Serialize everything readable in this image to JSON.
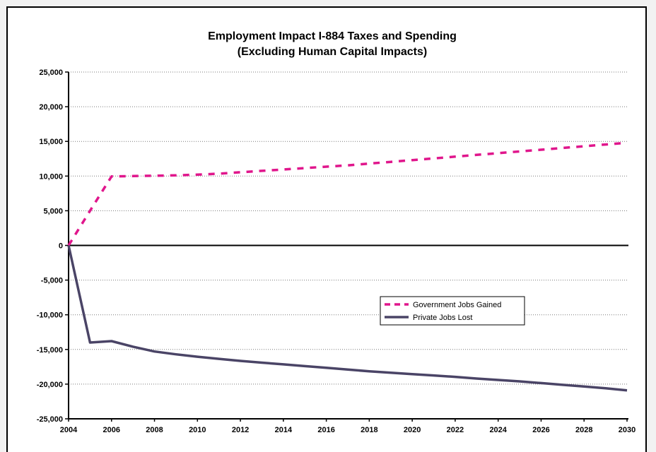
{
  "colors": {
    "government": "#e0168c",
    "private": "#4a4466",
    "axis": "#000000",
    "grid": "#7a7a7a"
  },
  "chart_data": {
    "type": "line",
    "title": "Employment Impact I-884 Taxes and Spending",
    "subtitle": "(Excluding Human Capital Impacts)",
    "xlabel": "",
    "ylabel": "",
    "xlim": [
      2004,
      2030
    ],
    "ylim": [
      -25000,
      25000
    ],
    "x_ticks": [
      2004,
      2006,
      2008,
      2010,
      2012,
      2014,
      2016,
      2018,
      2020,
      2022,
      2024,
      2026,
      2028,
      2030
    ],
    "x_tick_labels": [
      "2004",
      "2006",
      "2008",
      "2010",
      "2012",
      "2014",
      "2016",
      "2018",
      "2020",
      "2022",
      "2024",
      "2026",
      "2028",
      "2030"
    ],
    "y_ticks": [
      25000,
      20000,
      15000,
      10000,
      5000,
      0,
      -5000,
      -10000,
      -15000,
      -20000,
      -25000
    ],
    "y_tick_labels": [
      "25,000",
      "20,000",
      "15,000",
      "10,000",
      "5,000",
      "0",
      "-5,000",
      "-10,000",
      "-15,000",
      "-20,000",
      "-25,000"
    ],
    "grid": "horizontal dotted",
    "legend": {
      "position": "center-right"
    },
    "x": [
      2004,
      2005,
      2006,
      2007,
      2008,
      2009,
      2010,
      2011,
      2012,
      2013,
      2014,
      2015,
      2016,
      2017,
      2018,
      2019,
      2020,
      2021,
      2022,
      2023,
      2024,
      2025,
      2026,
      2027,
      2028,
      2029,
      2030
    ],
    "series": [
      {
        "name": "Government Jobs Gained",
        "style": "dashed",
        "values": [
          0,
          5000,
          9950,
          10000,
          10050,
          10100,
          10200,
          10350,
          10550,
          10750,
          10950,
          11150,
          11350,
          11550,
          11800,
          12050,
          12300,
          12550,
          12800,
          13050,
          13300,
          13550,
          13800,
          14050,
          14300,
          14550,
          14800
        ]
      },
      {
        "name": "Private Jobs Lost",
        "style": "solid",
        "values": [
          0,
          -14000,
          -13800,
          -14600,
          -15300,
          -15700,
          -16050,
          -16350,
          -16650,
          -16900,
          -17150,
          -17400,
          -17650,
          -17900,
          -18150,
          -18350,
          -18550,
          -18750,
          -18950,
          -19200,
          -19400,
          -19600,
          -19850,
          -20100,
          -20350,
          -20600,
          -20900
        ]
      }
    ]
  }
}
